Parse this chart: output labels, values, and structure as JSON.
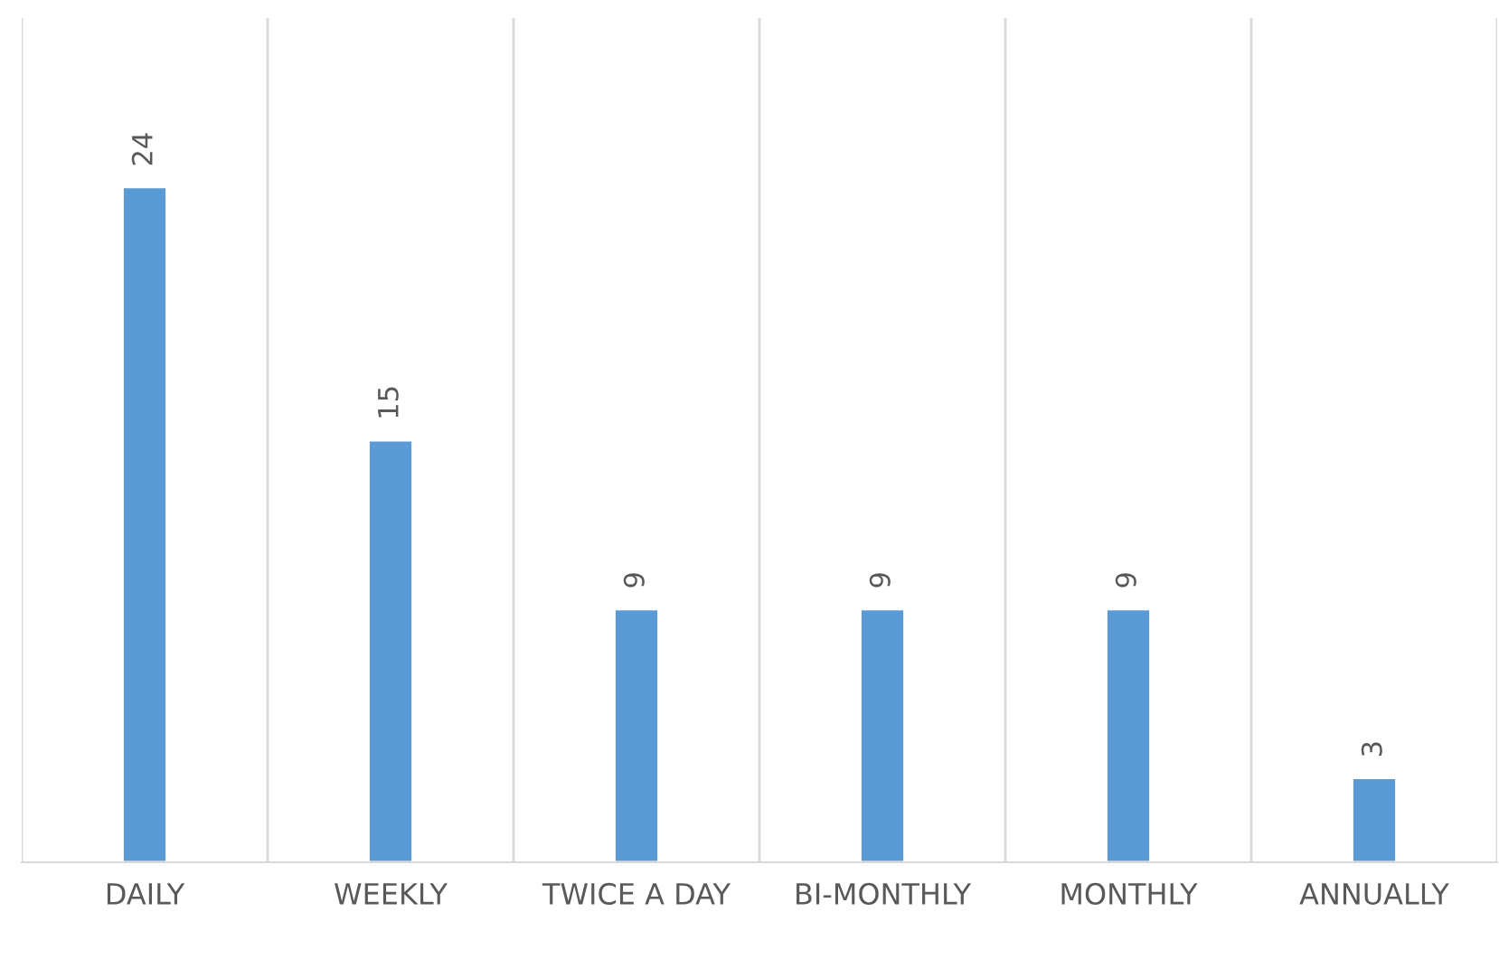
{
  "chart_data": {
    "type": "bar",
    "categories": [
      "DAILY",
      "WEEKLY",
      "TWICE A DAY",
      "BI-MONTHLY",
      "MONTHLY",
      "ANNUALLY"
    ],
    "values": [
      24,
      15,
      9,
      9,
      9,
      3
    ],
    "color": "#5b9bd5",
    "data_labels": true,
    "ylim": [
      0,
      30
    ],
    "tick_labels": "x",
    "grid": "x",
    "legend": false
  }
}
